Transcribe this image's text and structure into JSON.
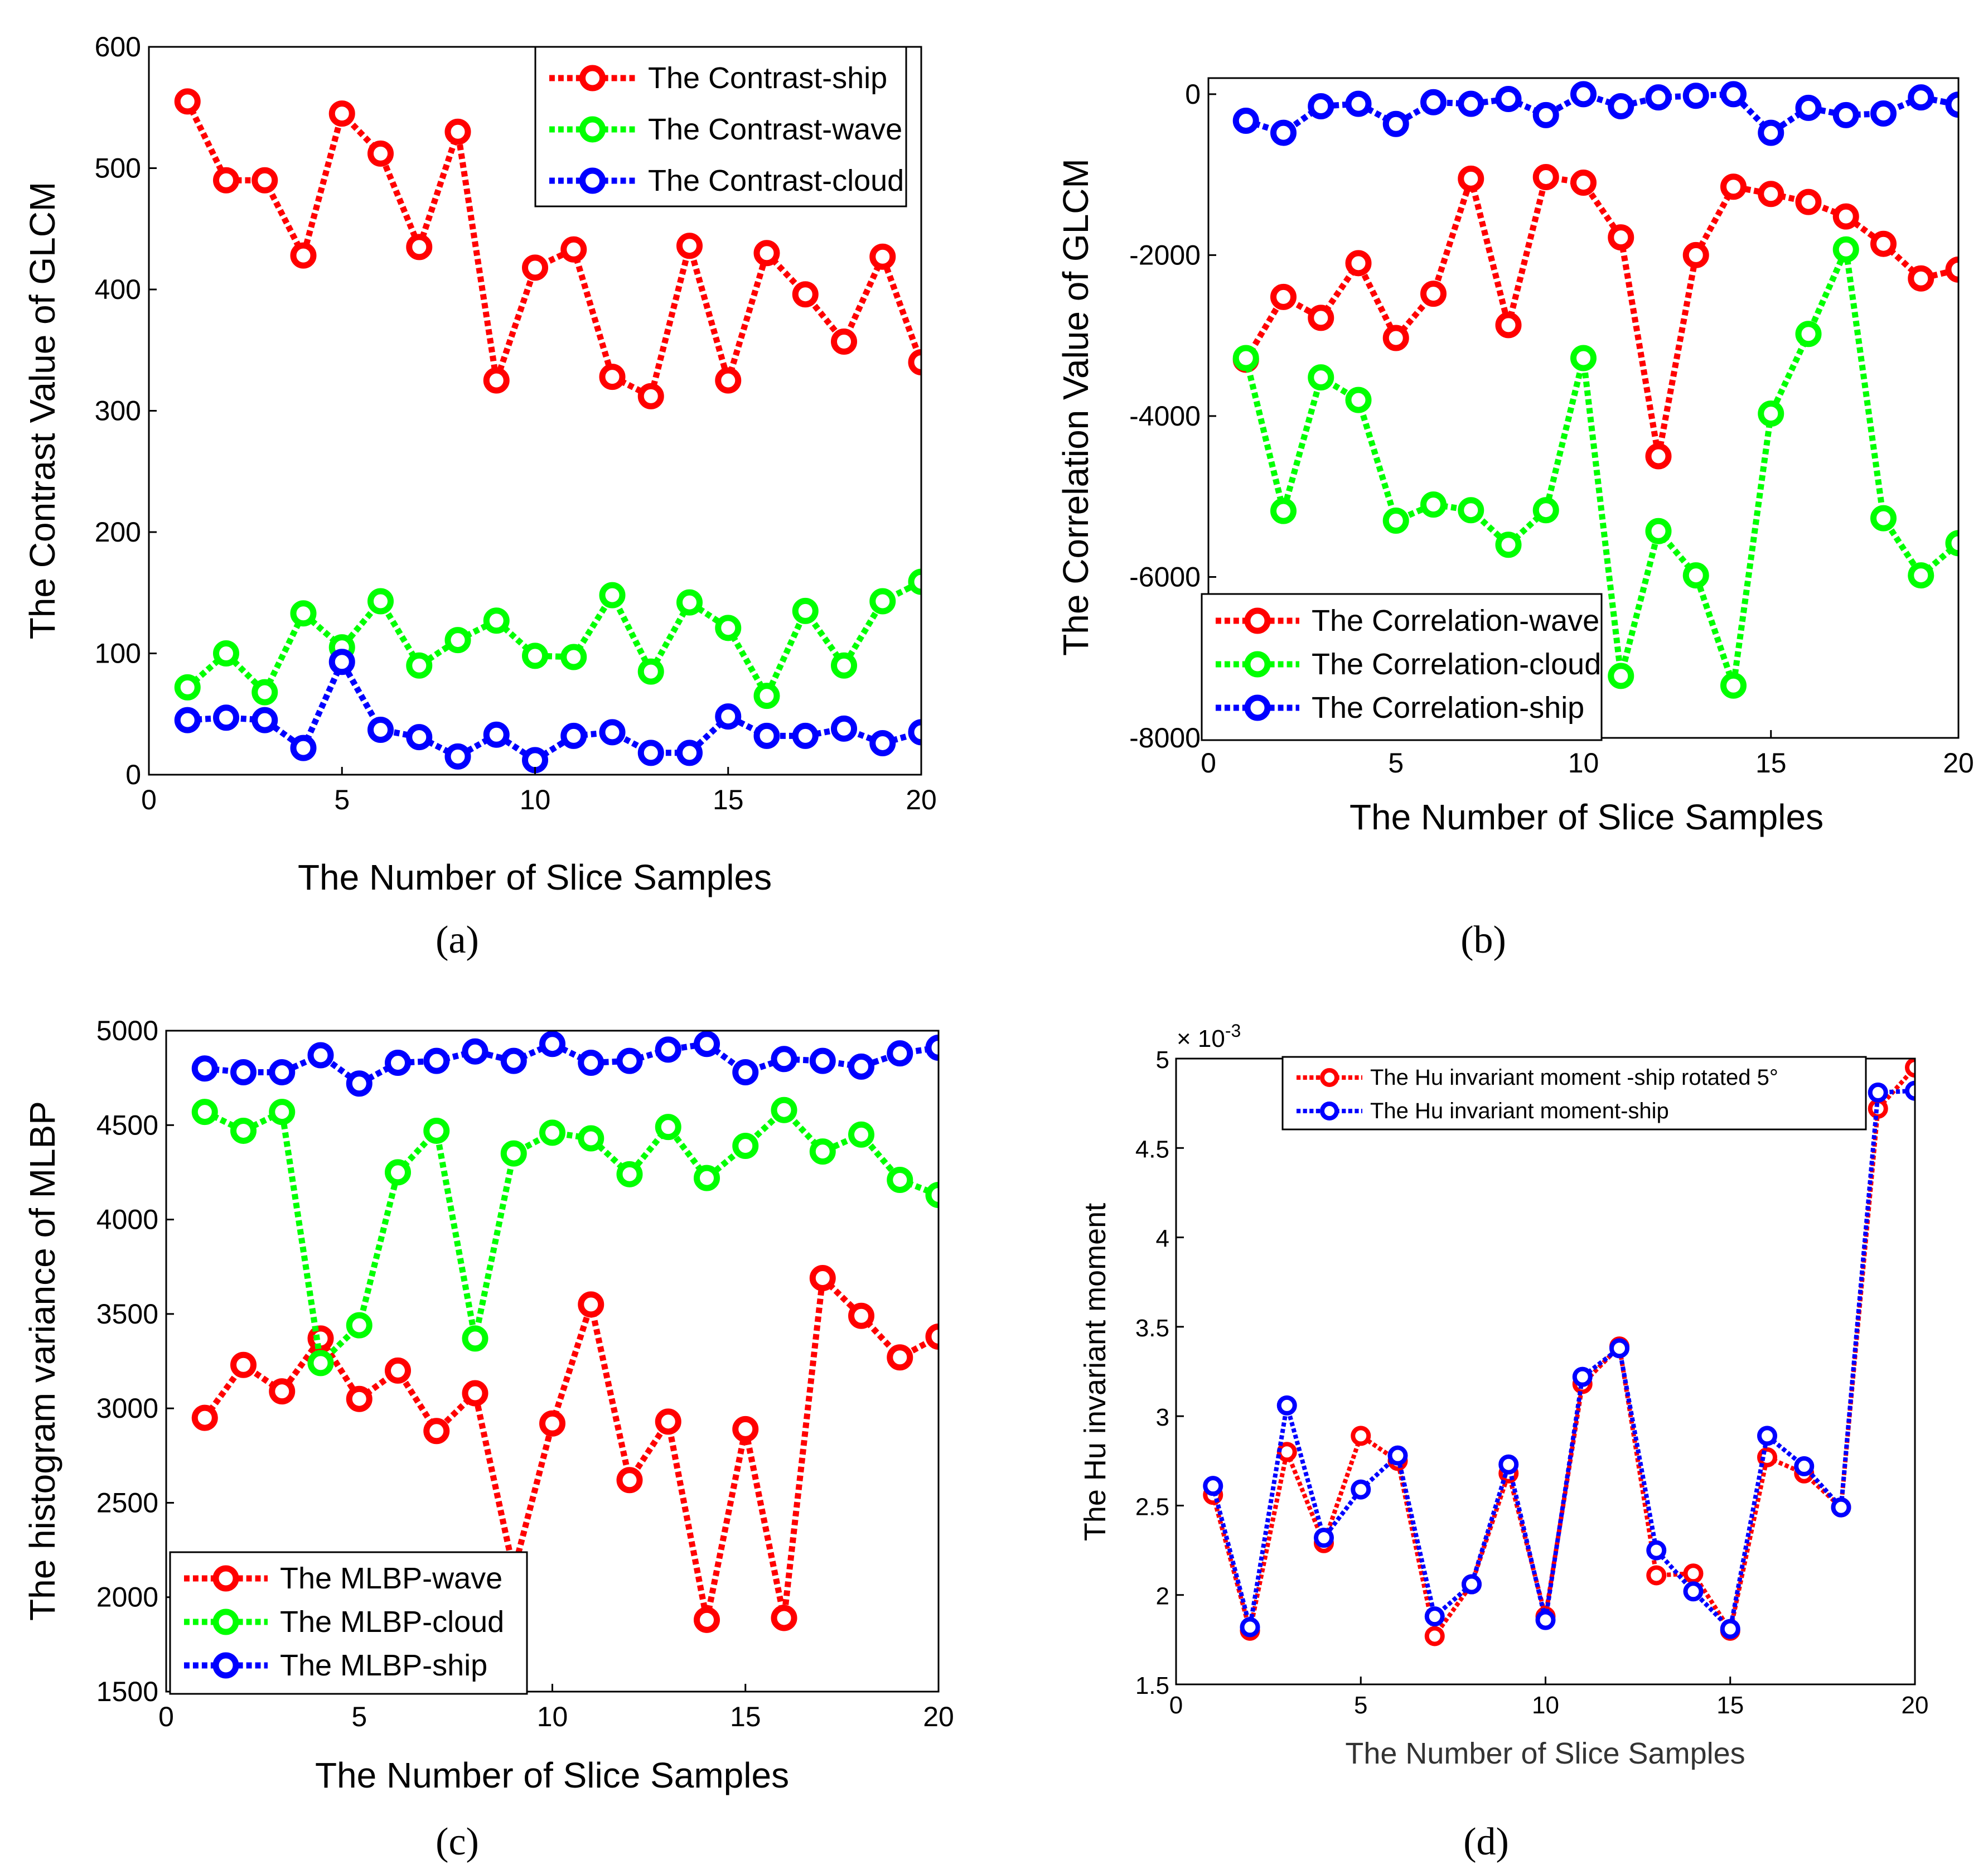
{
  "chart_data": [
    {
      "id": "a",
      "type": "line",
      "panel_label": "(a)",
      "xlabel": "The Number of Slice Samples",
      "ylabel": "The Contrast Value of GLCM",
      "xlim": [
        0,
        20
      ],
      "ylim": [
        0,
        600
      ],
      "xticks": [
        0,
        5,
        10,
        15,
        20
      ],
      "yticks": [
        0,
        100,
        200,
        300,
        400,
        500,
        600
      ],
      "legend_position": "top-right",
      "x": [
        1,
        2,
        3,
        4,
        5,
        6,
        7,
        8,
        9,
        10,
        11,
        12,
        13,
        14,
        15,
        16,
        17,
        18,
        19,
        20
      ],
      "series": [
        {
          "name": "The Contrast-ship",
          "color": "#ff0000",
          "values": [
            555,
            490,
            490,
            428,
            545,
            512,
            435,
            530,
            325,
            418,
            433,
            328,
            312,
            436,
            325,
            430,
            396,
            357,
            427,
            340
          ]
        },
        {
          "name": "The Contrast-wave",
          "color": "#00ff00",
          "values": [
            72,
            100,
            68,
            133,
            105,
            143,
            90,
            111,
            127,
            98,
            97,
            148,
            85,
            142,
            121,
            65,
            135,
            90,
            143,
            159
          ]
        },
        {
          "name": "The Contrast-cloud",
          "color": "#0000ff",
          "values": [
            45,
            47,
            45,
            22,
            93,
            37,
            31,
            15,
            33,
            12,
            32,
            35,
            18,
            18,
            48,
            32,
            32,
            38,
            26,
            35
          ]
        }
      ]
    },
    {
      "id": "b",
      "type": "line",
      "panel_label": "(b)",
      "xlabel": "The Number of Slice Samples",
      "ylabel": "The Correlation Value of GLCM",
      "xlim": [
        0,
        20
      ],
      "ylim": [
        -8000,
        200
      ],
      "xticks": [
        0,
        5,
        10,
        15,
        20
      ],
      "yticks": [
        -8000,
        -6000,
        -4000,
        -2000,
        0
      ],
      "legend_position": "bottom-left",
      "x": [
        1,
        2,
        3,
        4,
        5,
        6,
        7,
        8,
        9,
        10,
        11,
        12,
        13,
        14,
        15,
        16,
        17,
        18,
        19,
        20
      ],
      "series": [
        {
          "name": "The Correlation-wave",
          "color": "#ff0000",
          "values": [
            -3300,
            -2520,
            -2780,
            -2100,
            -3030,
            -2480,
            -1050,
            -2870,
            -1030,
            -1100,
            -1780,
            -4500,
            -2000,
            -1150,
            -1240,
            -1340,
            -1520,
            -1860,
            -2290,
            -2180
          ]
        },
        {
          "name": "The Correlation-cloud",
          "color": "#00ff00",
          "values": [
            -3280,
            -5180,
            -3520,
            -3800,
            -5300,
            -5100,
            -5170,
            -5600,
            -5170,
            -3280,
            -7230,
            -5430,
            -5980,
            -7350,
            -3970,
            -2980,
            -1930,
            -5270,
            -5980,
            -5580
          ]
        },
        {
          "name": "The Correlation-ship",
          "color": "#0000ff",
          "values": [
            -330,
            -480,
            -150,
            -120,
            -370,
            -100,
            -120,
            -60,
            -260,
            0,
            -150,
            -40,
            -20,
            0,
            -480,
            -170,
            -260,
            -240,
            -40,
            -130
          ]
        }
      ]
    },
    {
      "id": "c",
      "type": "line",
      "panel_label": "(c)",
      "xlabel": "The Number of Slice Samples",
      "ylabel": "The histogram variance of MLBP",
      "xlim": [
        0,
        20
      ],
      "ylim": [
        1500,
        5000
      ],
      "xticks": [
        0,
        5,
        10,
        15,
        20
      ],
      "yticks": [
        1500,
        2000,
        2500,
        3000,
        3500,
        4000,
        4500,
        5000
      ],
      "legend_position": "bottom-left",
      "x": [
        1,
        2,
        3,
        4,
        5,
        6,
        7,
        8,
        9,
        10,
        11,
        12,
        13,
        14,
        15,
        16,
        17,
        18,
        19,
        20
      ],
      "series": [
        {
          "name": "The MLBP-wave",
          "color": "#ff0000",
          "values": [
            2950,
            3230,
            3090,
            3370,
            3050,
            3200,
            2880,
            3080,
            2140,
            2920,
            3550,
            2620,
            2930,
            1880,
            2890,
            1890,
            3690,
            3490,
            3270,
            3380
          ]
        },
        {
          "name": "The MLBP-cloud",
          "color": "#00ff00",
          "values": [
            4570,
            4470,
            4570,
            3240,
            3440,
            4250,
            4470,
            3370,
            4350,
            4460,
            4430,
            4240,
            4490,
            4220,
            4390,
            4580,
            4360,
            4450,
            4210,
            4130
          ]
        },
        {
          "name": "The MLBP-ship",
          "color": "#0000ff",
          "values": [
            4800,
            4780,
            4780,
            4870,
            4720,
            4830,
            4840,
            4890,
            4840,
            4930,
            4830,
            4840,
            4900,
            4930,
            4780,
            4850,
            4840,
            4810,
            4880,
            4910
          ]
        }
      ]
    },
    {
      "id": "d",
      "type": "line",
      "panel_label": "(d)",
      "xlabel": "The Number of Slice Samples",
      "ylabel": "The Hu invariant moment",
      "exponent_label": "× 10",
      "exponent_power": "-3",
      "xlim": [
        0,
        20
      ],
      "ylim": [
        1.5,
        5
      ],
      "xticks": [
        0,
        5,
        10,
        15,
        20
      ],
      "yticks": [
        1.5,
        2,
        2.5,
        3,
        3.5,
        4,
        4.5,
        5
      ],
      "legend_position": "top-right",
      "x": [
        1,
        2,
        3,
        4,
        5,
        6,
        7,
        8,
        9,
        10,
        11,
        12,
        13,
        14,
        15,
        16,
        17,
        18,
        19,
        20
      ],
      "series": [
        {
          "name": "The Hu invariant moment -ship  rotated 5°",
          "color": "#ff0000",
          "values": [
            2.56,
            1.8,
            2.8,
            2.29,
            2.89,
            2.75,
            1.77,
            2.06,
            2.68,
            1.88,
            3.18,
            3.39,
            2.11,
            2.12,
            1.8,
            2.77,
            2.68,
            2.49,
            4.72,
            4.95
          ]
        },
        {
          "name": "The Hu invariant moment-ship",
          "color": "#0000ff",
          "values": [
            2.61,
            1.82,
            3.06,
            2.32,
            2.59,
            2.78,
            1.88,
            2.06,
            2.73,
            1.86,
            3.22,
            3.38,
            2.25,
            2.02,
            1.81,
            2.89,
            2.72,
            2.49,
            4.81,
            4.82
          ]
        }
      ]
    }
  ]
}
